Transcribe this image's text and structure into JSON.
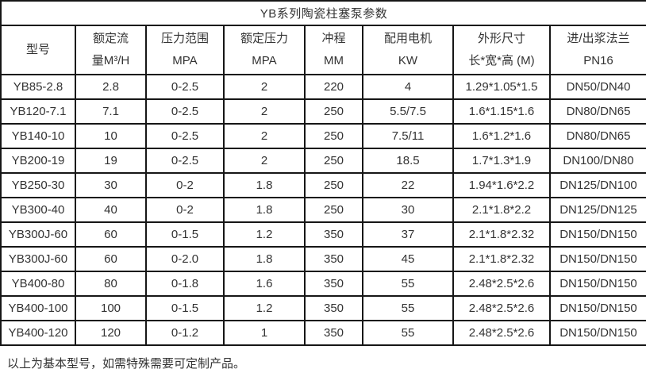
{
  "colors": {
    "background": "#ffffff",
    "border": "#161616",
    "text": "#333333"
  },
  "table": {
    "title": "YB系列陶瓷柱塞泵参数",
    "columns": [
      {
        "line1": "型号",
        "line2": ""
      },
      {
        "line1": "额定流",
        "line2": "量M³/H"
      },
      {
        "line1": "压力范围",
        "line2": "MPA"
      },
      {
        "line1": "额定压力",
        "line2": "MPA"
      },
      {
        "line1": "冲程",
        "line2": "MM"
      },
      {
        "line1": "配用电机",
        "line2": "KW"
      },
      {
        "line1": "外形尺寸",
        "line2": "长*宽*高 (M)"
      },
      {
        "line1": "进/出浆法兰",
        "line2": "PN16"
      }
    ],
    "rows": [
      [
        "YB85-2.8",
        "2.8",
        "0-2.5",
        "2",
        "220",
        "4",
        "1.29*1.05*1.5",
        "DN50/DN40"
      ],
      [
        "YB120-7.1",
        "7.1",
        "0-2.5",
        "2",
        "250",
        "5.5/7.5",
        "1.6*1.15*1.6",
        "DN80/DN65"
      ],
      [
        "YB140-10",
        "10",
        "0-2.5",
        "2",
        "250",
        "7.5/11",
        "1.6*1.2*1.6",
        "DN80/DN65"
      ],
      [
        "YB200-19",
        "19",
        "0-2.5",
        "2",
        "250",
        "18.5",
        "1.7*1.3*1.9",
        "DN100/DN80"
      ],
      [
        "YB250-30",
        "30",
        "0-2",
        "1.8",
        "250",
        "22",
        "1.94*1.6*2.2",
        "DN125/DN100"
      ],
      [
        "YB300-40",
        "40",
        "0-2",
        "1.8",
        "250",
        "30",
        "2.1*1.8*2.2",
        "DN125/DN125"
      ],
      [
        "YB300J-60",
        "60",
        "0-1.5",
        "1.2",
        "350",
        "37",
        "2.1*1.8*2.32",
        "DN150/DN150"
      ],
      [
        "YB300J-60",
        "60",
        "0-2.0",
        "1.8",
        "350",
        "45",
        "2.1*1.8*2.32",
        "DN150/DN150"
      ],
      [
        "YB400-80",
        "80",
        "0-1.8",
        "1.6",
        "350",
        "55",
        "2.48*2.5*2.6",
        "DN150/DN150"
      ],
      [
        "YB400-100",
        "100",
        "0-1.5",
        "1.2",
        "350",
        "55",
        "2.48*2.5*2.6",
        "DN150/DN150"
      ],
      [
        "YB400-120",
        "120",
        "0-1.2",
        "1",
        "350",
        "55",
        "2.48*2.5*2.6",
        "DN150/DN150"
      ]
    ]
  },
  "footer": {
    "note": "以上为基本型号，如需特殊需要可定制产品。"
  }
}
